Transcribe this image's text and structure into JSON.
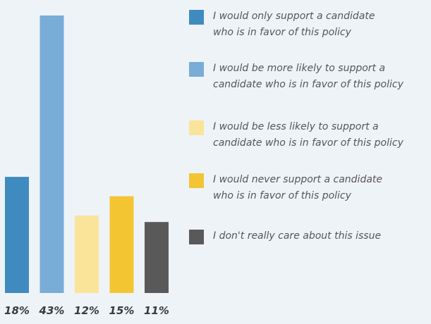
{
  "chart_data": {
    "type": "bar",
    "categories": [
      "I would only support a candidate\nwho is in favor of this policy",
      "I would be more likely to support a\ncandidate who is in favor of this policy",
      "I would be less likely to support a\ncandidate who is in favor of this policy",
      "I would never support a candidate\nwho is in favor of this policy",
      "I don't really care about this issue"
    ],
    "values": [
      18,
      43,
      12,
      15,
      11
    ],
    "value_labels": [
      "18%",
      "43%",
      "12%",
      "15%",
      "11%"
    ],
    "colors": [
      "#3f8bc0",
      "#79acd7",
      "#f9e49a",
      "#f3c533",
      "#595959"
    ],
    "title": "",
    "xlabel": "",
    "ylabel": "",
    "ylim": [
      0,
      43
    ],
    "grid": false,
    "legend_placement": "right"
  }
}
